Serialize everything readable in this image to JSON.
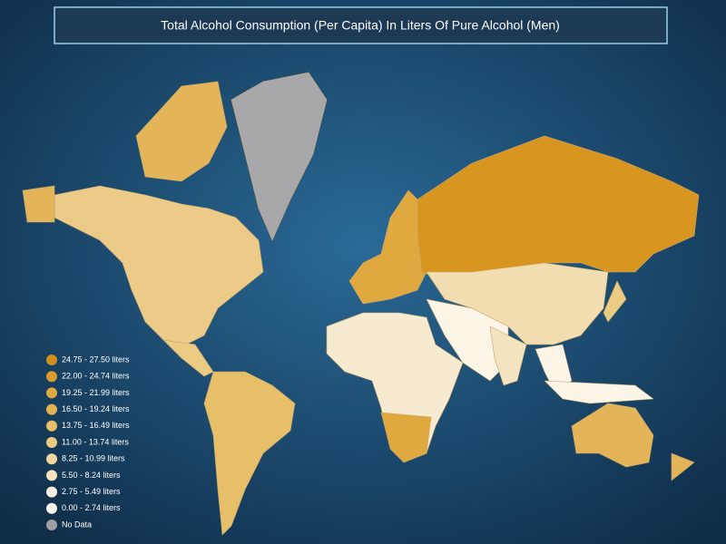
{
  "title": "Total Alcohol Consumption (Per Capita) In Liters Of Pure Alcohol (Men)",
  "legend": [
    {
      "label": "24.75 - 27.50 liters",
      "color": "#d18f1f"
    },
    {
      "label": "22.00 - 24.74 liters",
      "color": "#d99c2d"
    },
    {
      "label": "19.25 - 21.99 liters",
      "color": "#dfa93f"
    },
    {
      "label": "16.50 - 19.24 liters",
      "color": "#e3b352"
    },
    {
      "label": "13.75 - 16.49 liters",
      "color": "#e7bf69"
    },
    {
      "label": "11.00 - 13.74 liters",
      "color": "#ebca82"
    },
    {
      "label": "8.25 - 10.99 liters",
      "color": "#f0d7a0"
    },
    {
      "label": "5.50 - 8.24 liters",
      "color": "#f4e3bf"
    },
    {
      "label": "2.75 - 5.49 liters",
      "color": "#f8efdc"
    },
    {
      "label": "0.00 - 2.74 liters",
      "color": "#fcf8f0"
    },
    {
      "label": "No Data",
      "color": "#a0a0a4"
    }
  ]
}
